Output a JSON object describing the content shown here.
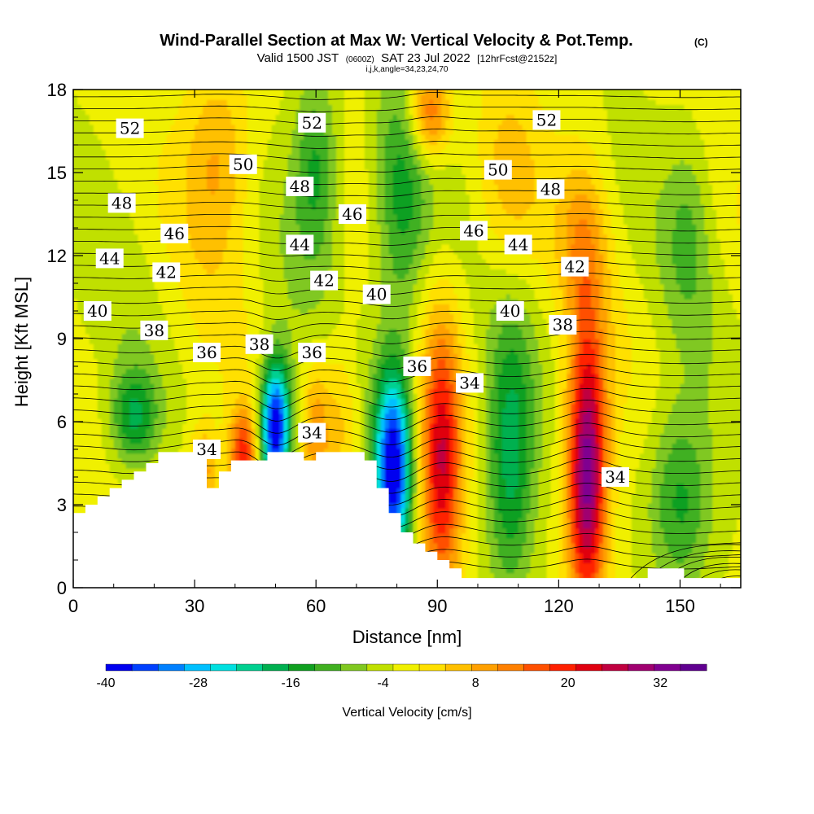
{
  "header": {
    "title": "Wind-Parallel Section at Max W: Vertical Velocity & Pot.Temp.",
    "copyright_mark": "(C)",
    "valid_prefix": "Valid 1500 JST",
    "utc_time": "(0600Z)",
    "valid_date": "SAT 23 Jul 2022",
    "forecast_info": "[12hrFcst@2152z]",
    "grid_info": "i,j,k,angle=34,23,24,70"
  },
  "chart_data": {
    "type": "heatmap",
    "xlabel": "Distance [nm]",
    "ylabel": "Height [Kft MSL]",
    "xlim": [
      0,
      165
    ],
    "ylim": [
      0,
      18
    ],
    "x_ticks": [
      0,
      30,
      60,
      90,
      120,
      150
    ],
    "y_ticks": [
      0,
      3,
      6,
      9,
      12,
      15,
      18
    ],
    "colorbar": {
      "label": "Vertical Velocity [cm/s]",
      "tick_labels": [
        "-40",
        "-28",
        "-16",
        "-4",
        "8",
        "20",
        "32"
      ],
      "tick_values": [
        -40,
        -28,
        -16,
        -4,
        8,
        20,
        32
      ],
      "min": -40,
      "max": 38,
      "colors": [
        "#0000f0",
        "#0040ff",
        "#0080ff",
        "#00c0ff",
        "#00e0e0",
        "#00d090",
        "#00b050",
        "#10a020",
        "#40b020",
        "#80c820",
        "#c0e000",
        "#f0f000",
        "#ffe000",
        "#ffc000",
        "#ffa000",
        "#ff8000",
        "#ff5000",
        "#ff2000",
        "#e00010",
        "#c00040",
        "#a00070",
        "#800090",
        "#600090"
      ]
    },
    "terrain": [
      {
        "x": 0,
        "h": 2.7
      },
      {
        "x": 3,
        "h": 3.0
      },
      {
        "x": 6,
        "h": 3.3
      },
      {
        "x": 9,
        "h": 3.6
      },
      {
        "x": 12,
        "h": 3.9
      },
      {
        "x": 15,
        "h": 4.2
      },
      {
        "x": 18,
        "h": 4.5
      },
      {
        "x": 21,
        "h": 4.9
      },
      {
        "x": 30,
        "h": 4.9
      },
      {
        "x": 33,
        "h": 3.6
      },
      {
        "x": 36,
        "h": 4.2
      },
      {
        "x": 39,
        "h": 4.6
      },
      {
        "x": 45,
        "h": 4.6
      },
      {
        "x": 48,
        "h": 4.9
      },
      {
        "x": 57,
        "h": 4.6
      },
      {
        "x": 60,
        "h": 4.9
      },
      {
        "x": 72,
        "h": 4.6
      },
      {
        "x": 75,
        "h": 3.6
      },
      {
        "x": 78,
        "h": 2.7
      },
      {
        "x": 81,
        "h": 2.0
      },
      {
        "x": 84,
        "h": 1.6
      },
      {
        "x": 87,
        "h": 1.3
      },
      {
        "x": 90,
        "h": 1.0
      },
      {
        "x": 93,
        "h": 0.7
      },
      {
        "x": 96,
        "h": 0.35
      },
      {
        "x": 141,
        "h": 0.35
      },
      {
        "x": 142,
        "h": 0.7
      },
      {
        "x": 150,
        "h": 0.7
      },
      {
        "x": 151,
        "h": 0.35
      },
      {
        "x": 165,
        "h": 0.35
      }
    ],
    "vertical_velocity_cells": [
      {
        "x": 15,
        "y": 6.2,
        "w": -14,
        "sx": 4,
        "sy": 1.2
      },
      {
        "x": 32,
        "y": 4.2,
        "w": 12,
        "sx": 2.5,
        "sy": 1.2
      },
      {
        "x": 42,
        "y": 4.6,
        "w": 22,
        "sx": 2.4,
        "sy": 1.3
      },
      {
        "x": 50,
        "y": 5.8,
        "w": -40,
        "sx": 2.6,
        "sy": 1.7
      },
      {
        "x": 60,
        "y": 5.6,
        "w": 12,
        "sx": 2.4,
        "sy": 2
      },
      {
        "x": 66,
        "y": 6.2,
        "w": 8,
        "sx": 3,
        "sy": 2.2
      },
      {
        "x": 79,
        "y": 4.3,
        "w": -40,
        "sx": 3.2,
        "sy": 2.4
      },
      {
        "x": 91,
        "y": 4.5,
        "w": 26,
        "sx": 3.6,
        "sy": 3.4
      },
      {
        "x": 108,
        "y": 4.8,
        "w": -16,
        "sx": 4.2,
        "sy": 3.5
      },
      {
        "x": 127,
        "y": 4.2,
        "w": 36,
        "sx": 3.4,
        "sy": 3.6
      },
      {
        "x": 150,
        "y": 3.2,
        "w": -12,
        "sx": 5.5,
        "sy": 2.4
      },
      {
        "x": 36,
        "y": 15.6,
        "w": 10,
        "sx": 6,
        "sy": 2.5
      },
      {
        "x": 60,
        "y": 15.2,
        "w": -12,
        "sx": 4,
        "sy": 2.4
      },
      {
        "x": 81,
        "y": 13.6,
        "w": -14,
        "sx": 5,
        "sy": 3.5
      },
      {
        "x": 88,
        "y": 17.2,
        "w": 18,
        "sx": 3.5,
        "sy": 1.2
      },
      {
        "x": 107,
        "y": 14.2,
        "w": 8,
        "sx": 6,
        "sy": 3
      },
      {
        "x": 126,
        "y": 12.6,
        "w": 9,
        "sx": 4,
        "sy": 2.2
      },
      {
        "x": 152,
        "y": 13,
        "w": -6,
        "sx": 4,
        "sy": 2.5
      }
    ],
    "theta_contour_labels": [
      {
        "text": "52",
        "x": 14,
        "y": 16.6
      },
      {
        "text": "52",
        "x": 59,
        "y": 16.8
      },
      {
        "text": "52",
        "x": 117,
        "y": 16.9
      },
      {
        "text": "50",
        "x": 42,
        "y": 15.3
      },
      {
        "text": "50",
        "x": 105,
        "y": 15.1
      },
      {
        "text": "48",
        "x": 12,
        "y": 13.9
      },
      {
        "text": "48",
        "x": 56,
        "y": 14.5
      },
      {
        "text": "48",
        "x": 118,
        "y": 14.4
      },
      {
        "text": "46",
        "x": 25,
        "y": 12.8
      },
      {
        "text": "46",
        "x": 69,
        "y": 13.5
      },
      {
        "text": "46",
        "x": 99,
        "y": 12.9
      },
      {
        "text": "44",
        "x": 9,
        "y": 11.9
      },
      {
        "text": "44",
        "x": 56,
        "y": 12.4
      },
      {
        "text": "44",
        "x": 110,
        "y": 12.4
      },
      {
        "text": "42",
        "x": 23,
        "y": 11.4
      },
      {
        "text": "42",
        "x": 62,
        "y": 11.1
      },
      {
        "text": "42",
        "x": 124,
        "y": 11.6
      },
      {
        "text": "40",
        "x": 6,
        "y": 10.0
      },
      {
        "text": "40",
        "x": 75,
        "y": 10.6
      },
      {
        "text": "40",
        "x": 108,
        "y": 10.0
      },
      {
        "text": "38",
        "x": 20,
        "y": 9.3
      },
      {
        "text": "38",
        "x": 46,
        "y": 8.8
      },
      {
        "text": "38",
        "x": 121,
        "y": 9.5
      },
      {
        "text": "36",
        "x": 33,
        "y": 8.5
      },
      {
        "text": "36",
        "x": 59,
        "y": 8.5
      },
      {
        "text": "36",
        "x": 85,
        "y": 8.0
      },
      {
        "text": "34",
        "x": 98,
        "y": 7.4
      },
      {
        "text": "34",
        "x": 33,
        "y": 5.0
      },
      {
        "text": "34",
        "x": 59,
        "y": 5.6
      },
      {
        "text": "34",
        "x": 134,
        "y": 4.0
      }
    ]
  }
}
